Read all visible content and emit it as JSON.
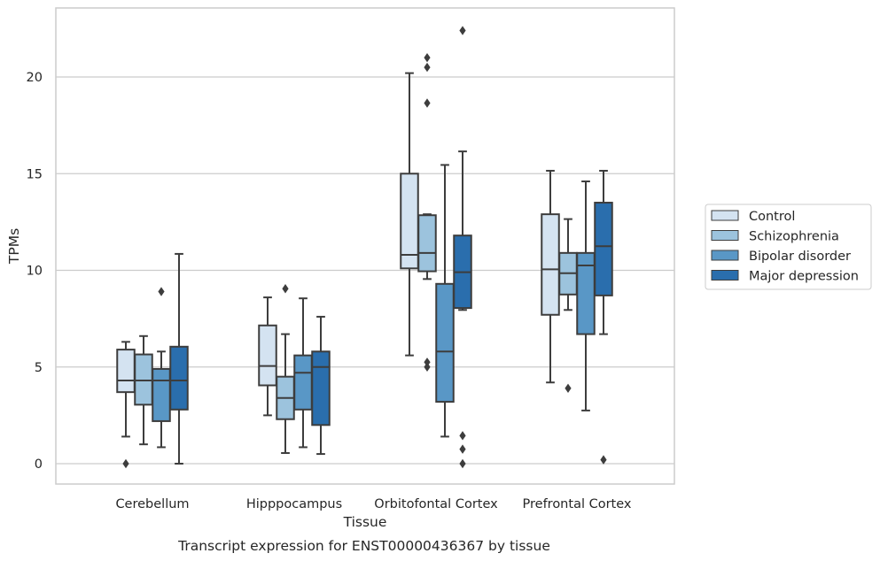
{
  "chart_data": {
    "type": "boxplot",
    "title": "",
    "caption": "Transcript expression for ENST00000436367 by tissue",
    "xlabel": "Tissue",
    "ylabel": "TPMs",
    "ylim": [
      -1.1,
      23.5
    ],
    "yticks": [
      0,
      5,
      10,
      15,
      20
    ],
    "grid": "horizontal",
    "legend_placement": "outside-right",
    "categories": [
      "Cerebellum",
      "Hipppocampus",
      "Orbitofontal Cortex",
      "Prefrontal Cortex"
    ],
    "series": [
      {
        "name": "Control",
        "color": "#d4e3f1",
        "boxes": [
          {
            "whislo": 1.4,
            "q1": 3.7,
            "median": 4.3,
            "q3": 5.9,
            "whishi": 6.3,
            "fliers": [
              0.0
            ]
          },
          {
            "whislo": 2.5,
            "q1": 4.05,
            "median": 5.05,
            "q3": 7.15,
            "whishi": 8.6,
            "fliers": []
          },
          {
            "whislo": 5.6,
            "q1": 10.1,
            "median": 10.8,
            "q3": 15.0,
            "whishi": 20.2,
            "fliers": []
          },
          {
            "whislo": 4.2,
            "q1": 7.7,
            "median": 10.05,
            "q3": 12.9,
            "whishi": 15.15,
            "fliers": []
          }
        ]
      },
      {
        "name": "Schizophrenia",
        "color": "#9cc3dd",
        "boxes": [
          {
            "whislo": 1.0,
            "q1": 3.05,
            "median": 4.3,
            "q3": 5.65,
            "whishi": 6.6,
            "fliers": []
          },
          {
            "whislo": 0.55,
            "q1": 2.3,
            "median": 3.4,
            "q3": 4.5,
            "whishi": 6.7,
            "fliers": [
              9.05
            ]
          },
          {
            "whislo": 9.55,
            "q1": 9.95,
            "median": 10.9,
            "q3": 12.85,
            "whishi": 12.9,
            "fliers": [
              5.0,
              5.25,
              18.65,
              20.5,
              21.0
            ]
          },
          {
            "whislo": 7.95,
            "q1": 8.75,
            "median": 9.85,
            "q3": 10.9,
            "whishi": 12.65,
            "fliers": [
              3.9
            ]
          }
        ]
      },
      {
        "name": "Bipolar disorder",
        "color": "#5997c6",
        "boxes": [
          {
            "whislo": 0.85,
            "q1": 2.2,
            "median": 4.3,
            "q3": 4.9,
            "whishi": 5.8,
            "fliers": [
              8.9
            ]
          },
          {
            "whislo": 0.85,
            "q1": 2.8,
            "median": 4.7,
            "q3": 5.6,
            "whishi": 8.55,
            "fliers": []
          },
          {
            "whislo": 1.4,
            "q1": 3.2,
            "median": 5.8,
            "q3": 9.3,
            "whishi": 15.45,
            "fliers": []
          },
          {
            "whislo": 2.75,
            "q1": 6.7,
            "median": 10.25,
            "q3": 10.9,
            "whishi": 14.6,
            "fliers": []
          }
        ]
      },
      {
        "name": "Major depression",
        "color": "#2a6ead",
        "boxes": [
          {
            "whislo": 0.0,
            "q1": 2.8,
            "median": 4.3,
            "q3": 6.05,
            "whishi": 10.85,
            "fliers": []
          },
          {
            "whislo": 0.5,
            "q1": 2.0,
            "median": 5.0,
            "q3": 5.8,
            "whishi": 7.6,
            "fliers": []
          },
          {
            "whislo": 7.95,
            "q1": 8.05,
            "median": 9.9,
            "q3": 11.8,
            "whishi": 16.15,
            "fliers": [
              0.0,
              0.75,
              1.45,
              22.4
            ]
          },
          {
            "whislo": 6.7,
            "q1": 8.7,
            "median": 11.25,
            "q3": 13.5,
            "whishi": 15.15,
            "fliers": [
              0.2
            ]
          }
        ]
      }
    ]
  }
}
